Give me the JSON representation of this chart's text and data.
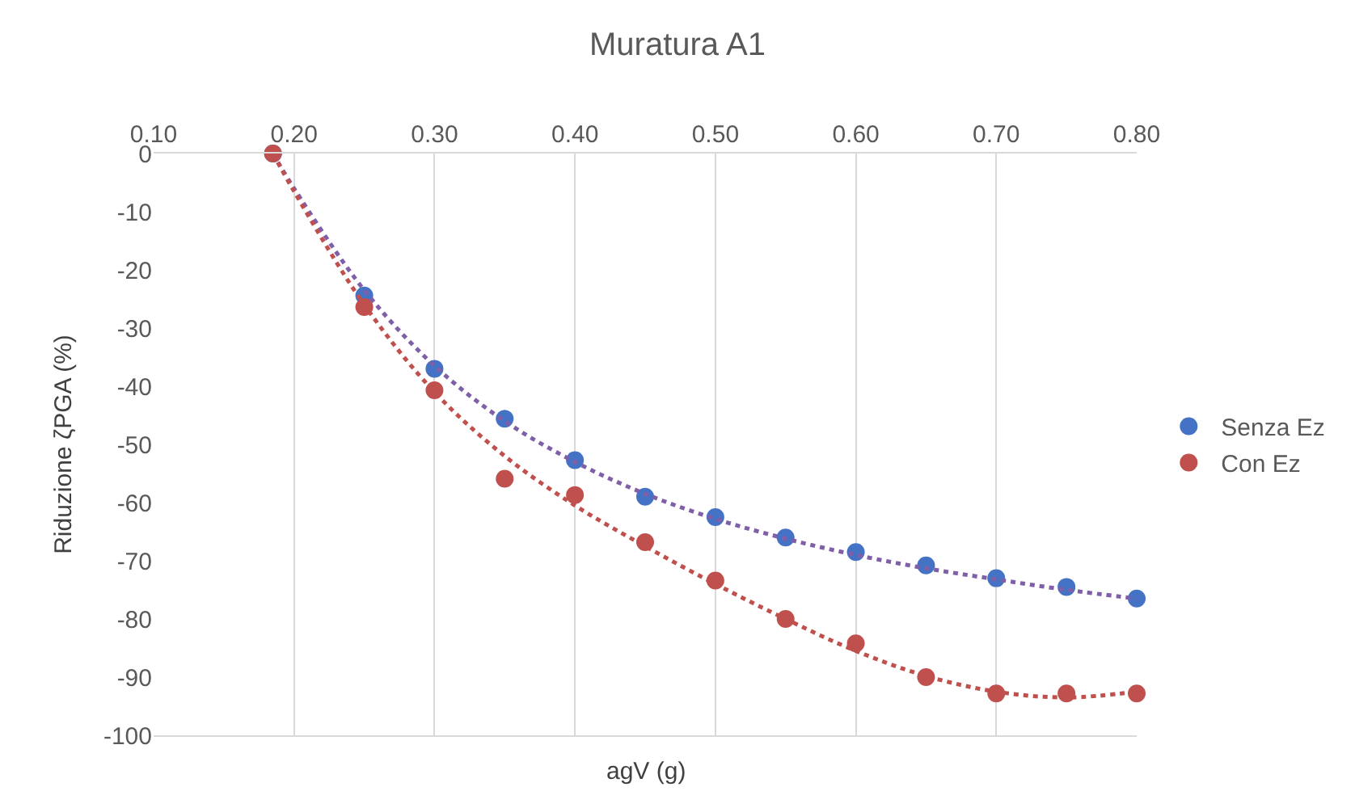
{
  "chart_data": {
    "type": "scatter",
    "title": "Muratura A1",
    "xlabel": "agV (g)",
    "ylabel": "Riduzione ζPGA (%)",
    "xlim": [
      0.1,
      0.8
    ],
    "xticks": [
      {
        "value": 0.1,
        "label": "0.10"
      },
      {
        "value": 0.2,
        "label": "0.20"
      },
      {
        "value": 0.3,
        "label": "0.30"
      },
      {
        "value": 0.4,
        "label": "0.40"
      },
      {
        "value": 0.5,
        "label": "0.50"
      },
      {
        "value": 0.6,
        "label": "0.60"
      },
      {
        "value": 0.7,
        "label": "0.70"
      },
      {
        "value": 0.8,
        "label": "0.80"
      }
    ],
    "ylim": [
      -100,
      0
    ],
    "yticks": [
      0,
      -10,
      -20,
      -30,
      -40,
      -50,
      -60,
      -70,
      -80,
      -90,
      -100
    ],
    "grid": "x",
    "legend": "right",
    "marker": "circle",
    "series": [
      {
        "name": "Senza Ez",
        "color": "#4472c4",
        "x": [
          0.185,
          0.25,
          0.3,
          0.35,
          0.4,
          0.45,
          0.5,
          0.55,
          0.6,
          0.65,
          0.7,
          0.75,
          0.8
        ],
        "values": [
          0,
          -24.4,
          -37,
          -45.6,
          -52.7,
          -59,
          -62.5,
          -66,
          -68.5,
          -70.8,
          -73,
          -74.5,
          -76.5
        ]
      },
      {
        "name": "Con Ez",
        "color": "#c0504d",
        "x": [
          0.185,
          0.25,
          0.3,
          0.35,
          0.4,
          0.45,
          0.5,
          0.55,
          0.6,
          0.65,
          0.7,
          0.75,
          0.8
        ],
        "values": [
          0,
          -26.4,
          -40.7,
          -55.9,
          -58.7,
          -66.8,
          -73.4,
          -80,
          -84.2,
          -90,
          -92.8,
          -92.8,
          -92.8
        ]
      },
      {
        "type": "line",
        "line_style": "dotted",
        "marker": "none",
        "color": "#7f5fa8",
        "x": [
          0.185,
          0.2,
          0.25,
          0.3,
          0.35,
          0.4,
          0.45,
          0.5,
          0.55,
          0.6,
          0.65,
          0.7,
          0.75,
          0.8
        ],
        "values": [
          0,
          -6,
          -23.5,
          -36.5,
          -46,
          -53,
          -58.5,
          -62.8,
          -66.2,
          -69,
          -71.3,
          -73.2,
          -75,
          -76.5
        ]
      },
      {
        "type": "line",
        "line_style": "dotted",
        "marker": "none",
        "color": "#c0504d",
        "x": [
          0.185,
          0.2,
          0.25,
          0.3,
          0.35,
          0.4,
          0.45,
          0.5,
          0.55,
          0.6,
          0.65,
          0.7,
          0.75,
          0.8
        ],
        "values": [
          0,
          -6.5,
          -26,
          -41,
          -52,
          -60.5,
          -67.5,
          -74,
          -80,
          -85.5,
          -89.8,
          -92.5,
          -93.5,
          -92.5
        ]
      }
    ]
  }
}
